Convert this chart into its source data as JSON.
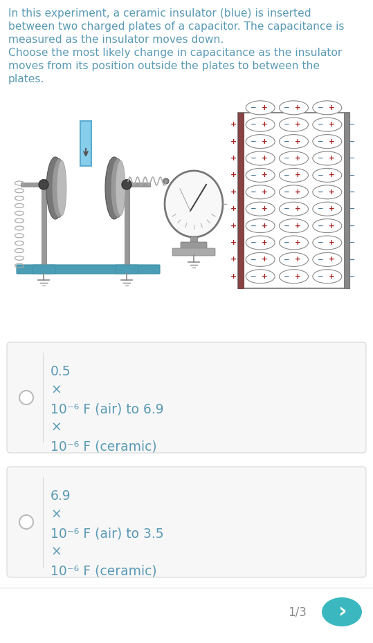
{
  "bg_color": "#ffffff",
  "text_color": "#5a9ab5",
  "desc_text_lines": [
    "In this experiment, a ceramic insulator (blue) is inserted",
    "between two charged plates of a capacitor. The capacitance is",
    "measured as the insulator moves down.",
    "Choose the most likely change in capacitance as the insulator",
    "moves from its position outside the plates to between the",
    "plates."
  ],
  "option1_lines": [
    "0.5",
    "×",
    "10⁻⁶ F (air) to 6.9",
    "×",
    "10⁻⁶ F (ceramic)"
  ],
  "option2_lines": [
    "6.9",
    "×",
    "10⁻⁶ F (air) to 3.5",
    "×",
    "10⁻⁶ F (ceramic)"
  ],
  "footer_text": "1/3",
  "box_bg": "#f7f7f7",
  "box_border": "#d8d8d8",
  "radio_color": "#bbbbbb",
  "sep_color": "#d8d8d8",
  "footer_sep": "#e0e0e0",
  "footer_text_color": "#888888",
  "next_btn_color": "#3bb8bf",
  "plate_color_left": "#b04040",
  "plate_color_right": "#555555",
  "insulator_color": "#87ceeb",
  "insulator_edge": "#5aaad0",
  "stand_color": "#999999",
  "stand_edge": "#777777",
  "base_teal": "#4a9db5",
  "base_teal_edge": "#3a8da5",
  "plate_dark": "#666666",
  "plate_mid": "#888888",
  "plate_light": "#aaaaaa",
  "spring_color": "#aaaaaa",
  "galv_color": "#888888",
  "oval_edge": "#888888",
  "oval_fill": "#ffffff",
  "plus_color": "#aa2222",
  "minus_color": "#4a7a9b",
  "frame_color": "#888888",
  "cap_plate_color": "#999999"
}
